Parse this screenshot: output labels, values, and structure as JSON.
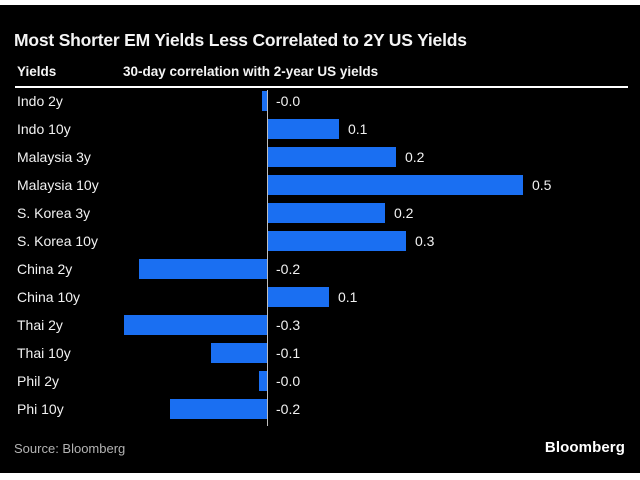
{
  "header": {
    "title": "Most Shorter EM Yields Less Correlated to 2Y US Yields"
  },
  "columns": {
    "left": "Yields",
    "right": "30-day correlation with 2-year US yields"
  },
  "chart_data": {
    "type": "bar",
    "orientation": "horizontal",
    "title": "Most Shorter EM Yields Less Correlated to 2Y US Yields",
    "series_label": "30-day correlation with 2-year US yields",
    "categories": [
      "Indo 2y",
      "Indo 10y",
      "Malaysia 3y",
      "Malaysia 10y",
      "S. Korea 3y",
      "S. Korea 10y",
      "China 2y",
      "China 10y",
      "Thai 2y",
      "Thai 10y",
      "Phil 2y",
      "Phi 10y"
    ],
    "values": [
      -0.01,
      0.14,
      0.25,
      0.5,
      0.23,
      0.27,
      -0.25,
      0.12,
      -0.28,
      -0.11,
      -0.015,
      -0.19
    ],
    "value_labels": [
      "-0.0",
      "0.1",
      "0.2",
      "0.5",
      "0.2",
      "0.3",
      "-0.2",
      "0.1",
      "-0.3",
      "-0.1",
      "-0.0",
      "-0.2"
    ],
    "xlim": [
      -0.49,
      0.71
    ],
    "grid": false,
    "legend": false,
    "zero_line": true
  },
  "colors": {
    "page_bg": "#ffffff",
    "chart_bg": "#000000",
    "bar": "#1a6ff2",
    "text": "#f2f2f2",
    "muted_text": "#b3b3b3",
    "rule": "#ffffff"
  },
  "footer": {
    "source": "Source: Bloomberg",
    "brand": "Bloomberg"
  }
}
